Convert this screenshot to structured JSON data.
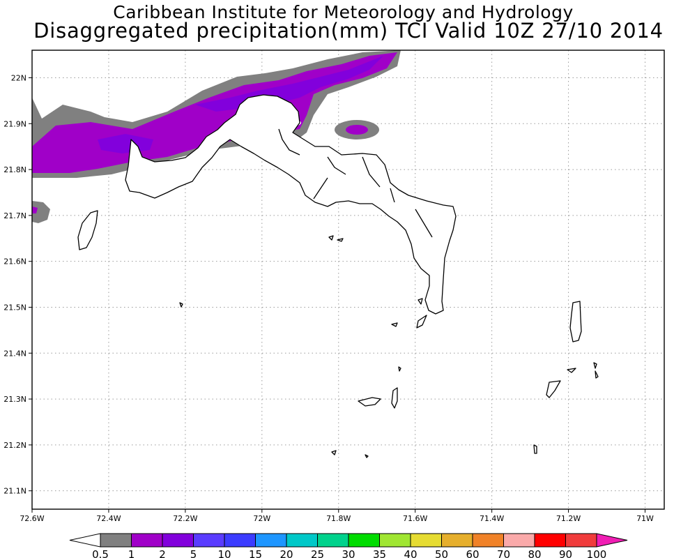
{
  "header": {
    "title_line1": "Caribbean Institute for Meteorology and Hydrology",
    "title_line2": "Disaggregated precipitation(mm) TCI Valid 10Z 27/10 2014"
  },
  "map": {
    "lon_range": [
      -72.6,
      -70.95
    ],
    "lat_range": [
      21.06,
      22.06
    ],
    "lon_ticks": [
      {
        "value": -72.6,
        "label": "72.6W"
      },
      {
        "value": -72.4,
        "label": "72.4W"
      },
      {
        "value": -72.2,
        "label": "72.2W"
      },
      {
        "value": -72.0,
        "label": "72W"
      },
      {
        "value": -71.8,
        "label": "71.8W"
      },
      {
        "value": -71.6,
        "label": "71.6W"
      },
      {
        "value": -71.4,
        "label": "71.4W"
      },
      {
        "value": -71.2,
        "label": "71.2W"
      },
      {
        "value": -71.0,
        "label": "71W"
      }
    ],
    "lat_ticks": [
      {
        "value": 22.0,
        "label": "22N"
      },
      {
        "value": 21.9,
        "label": "21.9N"
      },
      {
        "value": 21.8,
        "label": "21.8N"
      },
      {
        "value": 21.7,
        "label": "21.7N"
      },
      {
        "value": 21.6,
        "label": "21.6N"
      },
      {
        "value": 21.5,
        "label": "21.5N"
      },
      {
        "value": 21.4,
        "label": "21.4N"
      },
      {
        "value": 21.3,
        "label": "21.3N"
      },
      {
        "value": 21.2,
        "label": "21.2N"
      },
      {
        "value": 21.1,
        "label": "21.1N"
      }
    ],
    "grid": "dotted"
  },
  "colorbar": {
    "labels": [
      "0.5",
      "1",
      "2",
      "5",
      "10",
      "15",
      "20",
      "25",
      "30",
      "35",
      "40",
      "50",
      "60",
      "70",
      "80",
      "90",
      "100"
    ],
    "colors": [
      "#808080",
      "#a000c8",
      "#8200dc",
      "#5a3cff",
      "#3c3cff",
      "#1e96ff",
      "#00c8c8",
      "#00d28c",
      "#00dc00",
      "#a0e632",
      "#e6dc32",
      "#e6af2d",
      "#f08228",
      "#faaaaa",
      "#ff0000",
      "#f03c3c",
      "#f01eb4"
    ]
  }
}
